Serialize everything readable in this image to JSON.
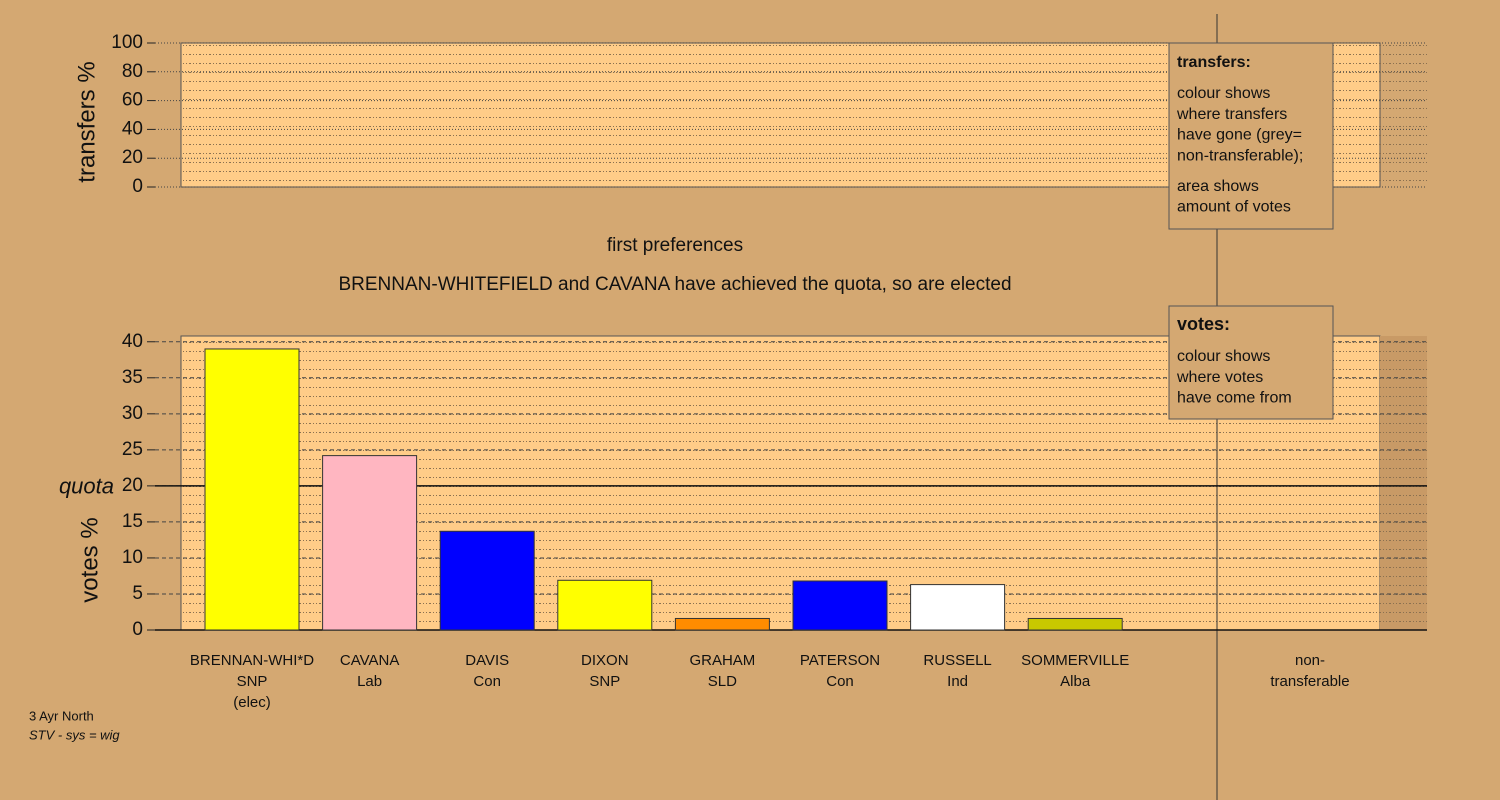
{
  "chart_data": [
    {
      "type": "area",
      "y_label": "transfers %",
      "ylim": [
        0,
        100
      ],
      "yticks": [
        0,
        20,
        40,
        60,
        80,
        100
      ],
      "grid": true,
      "series": []
    },
    {
      "type": "bar",
      "title": "first preferences",
      "subtitle": "BRENNAN-WHITEFIELD and CAVANA have achieved the quota, so are elected",
      "y_label": "votes %",
      "ylim": [
        0,
        40.8
      ],
      "yticks": [
        0,
        5,
        10,
        15,
        20,
        25,
        30,
        35,
        40
      ],
      "grid": true,
      "reference_line": {
        "value": 20,
        "label": "quota"
      },
      "categories": [
        [
          "BRENNAN-WHI*D",
          "SNP",
          "(elec)"
        ],
        [
          "CAVANA",
          "Lab"
        ],
        [
          "DAVIS",
          "Con"
        ],
        [
          "DIXON",
          "SNP"
        ],
        [
          "GRAHAM",
          "SLD"
        ],
        [
          "PATERSON",
          "Con"
        ],
        [
          "RUSSELL",
          "Ind"
        ],
        [
          "SOMMERVILLE",
          "Alba"
        ],
        [
          "non-",
          "transferable"
        ]
      ],
      "values": [
        39.0,
        24.2,
        13.7,
        6.9,
        1.6,
        6.8,
        6.3,
        1.6,
        null
      ],
      "colors": [
        "#ffff00",
        "#ffb6c1",
        "#0000ff",
        "#ffff00",
        "#ff8c00",
        "#0000ff",
        "#ffffff",
        "#c8c800",
        null
      ]
    }
  ],
  "legends": [
    {
      "title": "transfers:",
      "paragraphs": [
        [
          "colour shows",
          "where transfers",
          "have gone (grey=",
          "non-transferable);"
        ],
        [
          "area shows",
          "amount of votes"
        ]
      ]
    },
    {
      "title": "votes:",
      "paragraphs": [
        [
          "colour shows",
          "where votes",
          "have come from"
        ]
      ]
    }
  ],
  "footer": [
    "3 Ayr North",
    "STV - sys = wig"
  ]
}
